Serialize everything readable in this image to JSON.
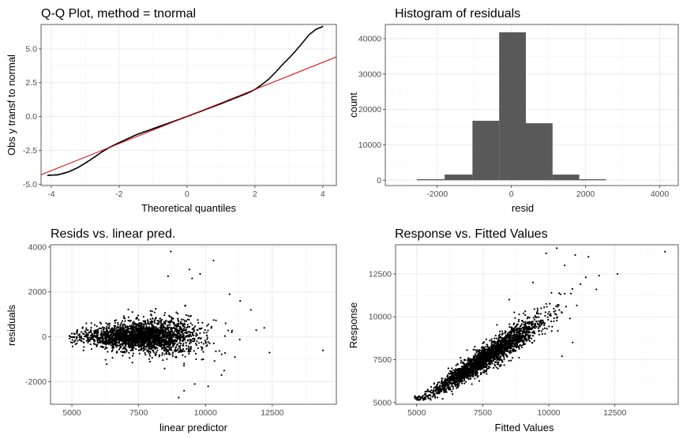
{
  "chart_data": [
    {
      "id": "qq",
      "type": "scatter",
      "title": "Q-Q Plot, method = tnormal",
      "xlabel": "Theoretical quantiles",
      "ylabel": "Obs y transf to normal",
      "xlim": [
        -4.3,
        4.4
      ],
      "ylim": [
        -5.1,
        6.8
      ],
      "xticks": [
        -4,
        -2,
        0,
        2,
        4
      ],
      "xtick_labels": [
        "-4",
        "-2",
        "0",
        "2",
        "4"
      ],
      "yticks": [
        -5,
        -2.5,
        0,
        2.5,
        5
      ],
      "ytick_labels": [
        "-5.0",
        "-2.5",
        "0.0",
        "2.5",
        "5.0"
      ],
      "grid": true,
      "points_color": "#000000",
      "reference_line": {
        "slope": 1.0,
        "intercept": 0.0,
        "color": "#cc0000"
      },
      "points": [
        [
          -4.1,
          -4.35
        ],
        [
          -3.8,
          -4.3
        ],
        [
          -3.5,
          -4.1
        ],
        [
          -3.2,
          -3.75
        ],
        [
          -3.0,
          -3.45
        ],
        [
          -2.7,
          -2.95
        ],
        [
          -2.5,
          -2.6
        ],
        [
          -2.3,
          -2.3
        ],
        [
          -2.1,
          -2.05
        ],
        [
          -1.8,
          -1.7
        ],
        [
          -1.5,
          -1.35
        ],
        [
          -1.0,
          -0.9
        ],
        [
          -0.5,
          -0.45
        ],
        [
          0.0,
          0.0
        ],
        [
          0.5,
          0.48
        ],
        [
          1.0,
          0.95
        ],
        [
          1.5,
          1.45
        ],
        [
          1.8,
          1.75
        ],
        [
          2.0,
          2.0
        ],
        [
          2.2,
          2.35
        ],
        [
          2.4,
          2.75
        ],
        [
          2.6,
          3.25
        ],
        [
          2.8,
          3.8
        ],
        [
          3.0,
          4.3
        ],
        [
          3.2,
          4.85
        ],
        [
          3.4,
          5.45
        ],
        [
          3.6,
          6.05
        ],
        [
          3.8,
          6.45
        ],
        [
          4.0,
          6.65
        ]
      ]
    },
    {
      "id": "hist",
      "type": "bar",
      "title": "Histogram of residuals",
      "xlabel": "resid",
      "ylabel": "count",
      "xlim": [
        -3400,
        4500
      ],
      "ylim": [
        -1500,
        44000
      ],
      "xticks": [
        -2000,
        0,
        2000,
        4000
      ],
      "xtick_labels": [
        "-2000",
        "0",
        "2000",
        "4000"
      ],
      "yticks": [
        0,
        10000,
        20000,
        30000,
        40000
      ],
      "ytick_labels": [
        "0",
        "10000",
        "20000",
        "30000",
        "40000"
      ],
      "grid": true,
      "bar_color": "#595959",
      "bins": [
        {
          "x0": -2550,
          "x1": -1800,
          "count": 300
        },
        {
          "x0": -1800,
          "x1": -1050,
          "count": 1600
        },
        {
          "x0": -1050,
          "x1": -330,
          "count": 16800
        },
        {
          "x0": -330,
          "x1": 390,
          "count": 41800
        },
        {
          "x0": 390,
          "x1": 1110,
          "count": 16100
        },
        {
          "x0": 1110,
          "x1": 1830,
          "count": 1600
        },
        {
          "x0": 1830,
          "x1": 2550,
          "count": 300
        }
      ]
    },
    {
      "id": "resid",
      "type": "scatter",
      "title": "Resids vs. linear pred.",
      "xlabel": "linear predictor",
      "ylabel": "residuals",
      "xlim": [
        4200,
        14900
      ],
      "ylim": [
        -3000,
        4100
      ],
      "xticks": [
        5000,
        7500,
        10000,
        12500
      ],
      "xtick_labels": [
        "5000",
        "7500",
        "10000",
        "12500"
      ],
      "yticks": [
        -2000,
        0,
        2000,
        4000
      ],
      "ytick_labels": [
        "-2000",
        "0",
        "2000",
        "4000"
      ],
      "grid": true,
      "points_color": "#000000",
      "outliers": [
        [
          8700,
          3800
        ],
        [
          8600,
          2700
        ],
        [
          9500,
          2600
        ],
        [
          10300,
          3400
        ],
        [
          9800,
          2800
        ],
        [
          11300,
          1600
        ],
        [
          11700,
          1200
        ],
        [
          12200,
          400
        ],
        [
          12400,
          -700
        ],
        [
          11900,
          300
        ],
        [
          10100,
          -2200
        ],
        [
          9200,
          -2400
        ],
        [
          9600,
          -2100
        ],
        [
          9000,
          -2700
        ],
        [
          10600,
          -1700
        ],
        [
          14400,
          -600
        ],
        [
          10900,
          1900
        ],
        [
          10700,
          -1500
        ],
        [
          9400,
          3000
        ],
        [
          11100,
          -900
        ]
      ]
    },
    {
      "id": "resp",
      "type": "scatter",
      "title": "Response vs. Fitted Values",
      "xlabel": "Fitted Values",
      "ylabel": "Response",
      "xlim": [
        4200,
        14900
      ],
      "ylim": [
        4900,
        14200
      ],
      "xticks": [
        5000,
        7500,
        10000,
        12500
      ],
      "xtick_labels": [
        "5000",
        "7500",
        "10000",
        "12500"
      ],
      "yticks": [
        5000,
        7500,
        10000,
        12500
      ],
      "ytick_labels": [
        "5000",
        "7500",
        "10000",
        "12500"
      ],
      "grid": true,
      "points_color": "#000000",
      "outliers": [
        [
          14400,
          13800
        ],
        [
          11000,
          13600
        ],
        [
          11500,
          13500
        ],
        [
          10300,
          14000
        ],
        [
          10600,
          13000
        ],
        [
          11400,
          12300
        ],
        [
          11900,
          12400
        ],
        [
          12600,
          12500
        ],
        [
          10100,
          11400
        ],
        [
          9400,
          12000
        ],
        [
          8500,
          11000
        ],
        [
          11800,
          11600
        ],
        [
          10800,
          9900
        ],
        [
          10900,
          8500
        ],
        [
          10500,
          7700
        ],
        [
          11200,
          11900
        ],
        [
          9900,
          13700
        ]
      ]
    }
  ]
}
